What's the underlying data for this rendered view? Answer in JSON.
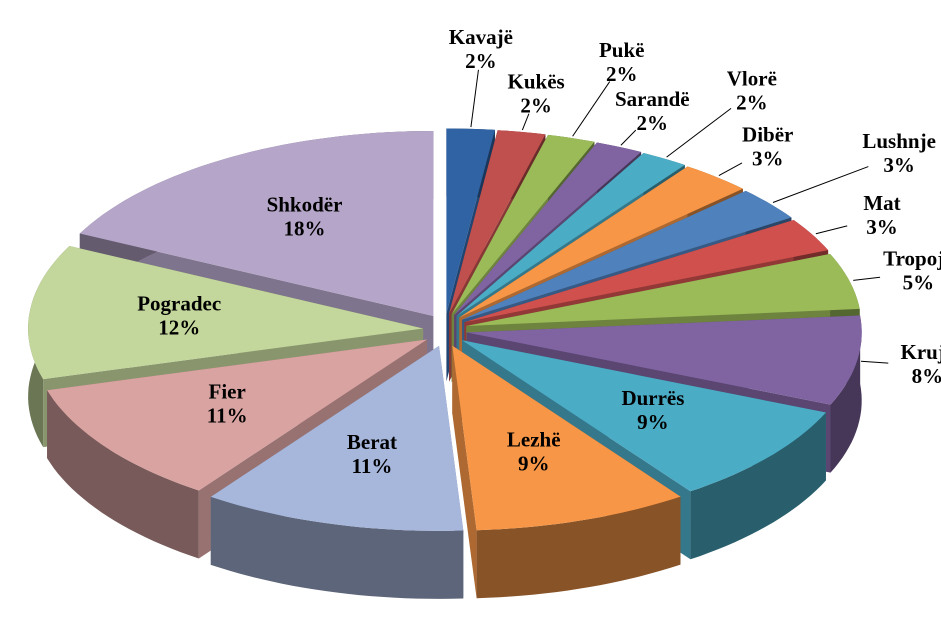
{
  "chart_data": {
    "type": "pie",
    "categories": [
      "Kavajë",
      "Kukës",
      "Pukë",
      "Sarandë",
      "Vlorë",
      "Dibër",
      "Lushnje",
      "Mat",
      "Tropojë",
      "Krujë",
      "Durrës",
      "Lezhë",
      "Berat",
      "Fier",
      "Pogradec",
      "Shkodër"
    ],
    "values": [
      2,
      2,
      2,
      2,
      2,
      3,
      3,
      3,
      5,
      8,
      9,
      9,
      11,
      11,
      12,
      18
    ],
    "value_labels": [
      "2%",
      "2%",
      "2%",
      "2%",
      "2%",
      "3%",
      "3%",
      "3%",
      "5%",
      "8%",
      "9%",
      "9%",
      "11%",
      "11%",
      "12%",
      "18%"
    ],
    "colors": [
      "#2f63a3",
      "#c0504d",
      "#9bbb59",
      "#8064a2",
      "#4bacc6",
      "#f79646",
      "#4f81bd",
      "#d0504d",
      "#9bbb59",
      "#8064a2",
      "#4bacc6",
      "#f79646",
      "#a7b7dc",
      "#d9a3a1",
      "#c3d69b",
      "#b5a6c9"
    ]
  }
}
